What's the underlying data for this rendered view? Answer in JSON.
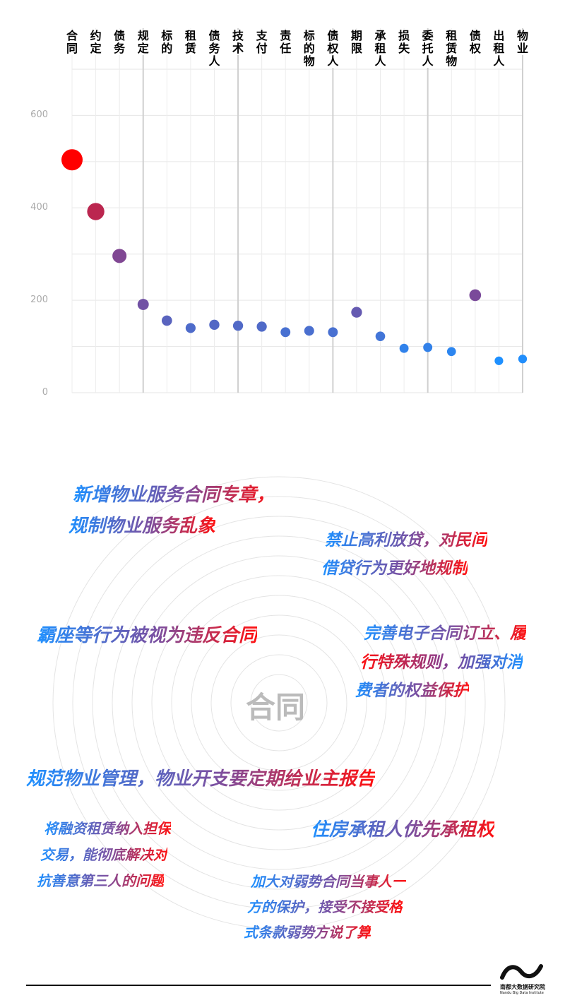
{
  "chart_data": {
    "type": "scatter",
    "categories": [
      "合同",
      "约定",
      "债务",
      "规定",
      "标的",
      "租赁",
      "债务人",
      "技术",
      "支付",
      "责任",
      "标的物",
      "债权人",
      "期限",
      "承租人",
      "损失",
      "委托人",
      "租赁物",
      "债权",
      "出租人",
      "物业"
    ],
    "values": [
      504,
      392,
      296,
      191,
      156,
      140,
      147,
      145,
      143,
      131,
      134,
      131,
      174,
      122,
      96,
      98,
      89,
      211,
      69,
      73
    ],
    "ylim": [
      0,
      700
    ],
    "yticks": [
      0,
      200,
      400,
      600
    ],
    "grid": true,
    "colors": {
      "high": "#ff0000",
      "mid": "#7a4a9a",
      "low": "#1e90ff"
    }
  },
  "cloud": {
    "center": "合同",
    "phrases": [
      [
        "新增物业服务合同专章，",
        "规制物业服务乱象"
      ],
      [
        "禁止高利放贷，对民间",
        "借贷行为更好地规制"
      ],
      [
        "霸座等行为被视为违反合同"
      ],
      [
        "完善电子合同订立、履",
        "行特殊规则，加强对消",
        "费者的权益保护"
      ],
      [
        "规范物业管理，物业开支要定期给业主报告"
      ],
      [
        "将融资租赁纳入担保",
        "交易，能彻底解决对",
        "抗善意第三人的问题"
      ],
      [
        "住房承租人优先承租权"
      ],
      [
        "加大对弱势合同当事人一",
        "方的保护，接受不接受格",
        "式条款弱势方说了算"
      ]
    ]
  },
  "logo": {
    "name": "南都大数据研究院",
    "en": "Nandu Big Data Institute"
  }
}
